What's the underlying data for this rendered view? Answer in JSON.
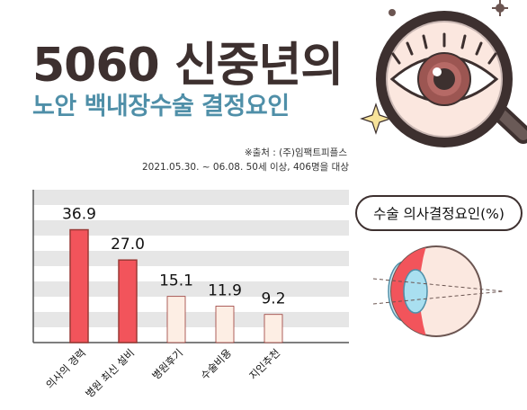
{
  "header": {
    "title": "5060 신중년의",
    "subtitle": "노안 백내장수술 결정요인",
    "source": "※출처 : (주)임팩트피플스",
    "period": "2021.05.30. ~  06.08. 50세 이상, 406명을 대상"
  },
  "legend": {
    "label": "수술 의사결정요인(%)"
  },
  "colors": {
    "title": "#3d302f",
    "subtitle": "#4f8fa8",
    "bar_highlight": "#f2545b",
    "bar_normal": "#fdeee4",
    "bar_stroke": "#9a3a36",
    "grid_band": "#e6e6e6"
  },
  "icons": [
    "magnifier-icon",
    "eye-icon",
    "sparkle-icon",
    "eye-cross-section-icon"
  ],
  "chart_data": {
    "type": "bar",
    "categories": [
      "의사의 경력",
      "병원 최신 설비",
      "병원후기",
      "수술비용",
      "지인추천"
    ],
    "values": [
      36.9,
      27.0,
      15.1,
      11.9,
      9.2
    ],
    "value_labels": [
      "36.9",
      "27.0",
      "15.1",
      "11.9",
      "9.2"
    ],
    "highlighted": [
      true,
      true,
      false,
      false,
      false
    ],
    "ylim": [
      0,
      50
    ],
    "grid": true
  }
}
